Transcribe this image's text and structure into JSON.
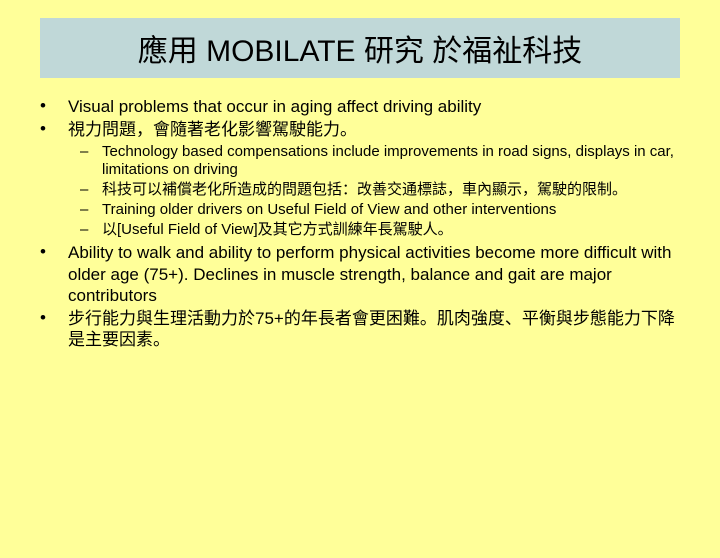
{
  "title": "應用 MOBILATE 研究 於福祉科技",
  "bullets": [
    {
      "level": 1,
      "text": "Visual problems that occur in aging affect driving ability"
    },
    {
      "level": 1,
      "text": "視力問題，會隨著老化影響駕駛能力。"
    },
    {
      "level": 2,
      "text": "Technology based compensations include improvements in road signs, displays in car, limitations on driving"
    },
    {
      "level": 2,
      "text": "科技可以補償老化所造成的問題包括：改善交通標誌，車內顯示，駕駛的限制。"
    },
    {
      "level": 2,
      "text": "Training older drivers on Useful Field of View and other interventions"
    },
    {
      "level": 2,
      "text": "以[Useful Field of View]及其它方式訓練年長駕駛人。"
    },
    {
      "level": 1,
      "text": "Ability to walk and ability to perform physical activities become more difficult with older age (75+). Declines in muscle strength, balance and gait are major contributors"
    },
    {
      "level": 1,
      "text": "步行能力與生理活動力於75+的年長者會更困難。肌肉強度、平衡與步態能力下降是主要因素。"
    }
  ],
  "colors": {
    "background": "#ffff99",
    "title_bg": "#c0d8d8",
    "text": "#000000"
  },
  "markers": {
    "level1": "•",
    "level2": "–"
  }
}
